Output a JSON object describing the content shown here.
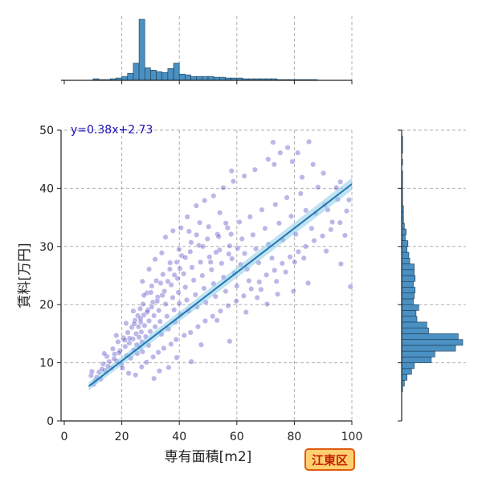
{
  "chart_data": {
    "type": "scatter",
    "title": "",
    "xlabel": "専有面積[m2]",
    "ylabel": "賃料[万円]",
    "xlim": [
      0,
      100
    ],
    "ylim": [
      0,
      50
    ],
    "x_ticks": [
      "0",
      "20",
      "40",
      "60",
      "80",
      "100"
    ],
    "y_ticks": [
      "0",
      "10",
      "20",
      "30",
      "40",
      "50"
    ],
    "grid": true,
    "regression": {
      "label": "y=0.38x+2.73",
      "slope": 0.38,
      "intercept": 2.73,
      "x_range": [
        8.5,
        100
      ]
    },
    "area_badge": "江東区",
    "scatter_color": "#2a1fb8",
    "regression_color": "#1f77b4",
    "histogram_color": "#4a90c2",
    "x_histogram": {
      "bin_width": 2,
      "bins": [
        {
          "x0": 10,
          "count": 2
        },
        {
          "x0": 12,
          "count": 1
        },
        {
          "x0": 14,
          "count": 1
        },
        {
          "x0": 16,
          "count": 2
        },
        {
          "x0": 18,
          "count": 3
        },
        {
          "x0": 20,
          "count": 5
        },
        {
          "x0": 22,
          "count": 9
        },
        {
          "x0": 24,
          "count": 22
        },
        {
          "x0": 26,
          "count": 78
        },
        {
          "x0": 28,
          "count": 16
        },
        {
          "x0": 30,
          "count": 13
        },
        {
          "x0": 32,
          "count": 11
        },
        {
          "x0": 34,
          "count": 10
        },
        {
          "x0": 36,
          "count": 15
        },
        {
          "x0": 38,
          "count": 22
        },
        {
          "x0": 40,
          "count": 8
        },
        {
          "x0": 42,
          "count": 7
        },
        {
          "x0": 44,
          "count": 5
        },
        {
          "x0": 46,
          "count": 5
        },
        {
          "x0": 48,
          "count": 5
        },
        {
          "x0": 50,
          "count": 5
        },
        {
          "x0": 52,
          "count": 4
        },
        {
          "x0": 54,
          "count": 4
        },
        {
          "x0": 56,
          "count": 3
        },
        {
          "x0": 58,
          "count": 3
        },
        {
          "x0": 60,
          "count": 3
        },
        {
          "x0": 62,
          "count": 2
        },
        {
          "x0": 64,
          "count": 2
        },
        {
          "x0": 66,
          "count": 2
        },
        {
          "x0": 68,
          "count": 2
        },
        {
          "x0": 70,
          "count": 2
        },
        {
          "x0": 72,
          "count": 2
        },
        {
          "x0": 74,
          "count": 1
        },
        {
          "x0": 76,
          "count": 1
        },
        {
          "x0": 78,
          "count": 1
        },
        {
          "x0": 80,
          "count": 1
        },
        {
          "x0": 82,
          "count": 1
        },
        {
          "x0": 84,
          "count": 1
        },
        {
          "x0": 86,
          "count": 1
        }
      ]
    },
    "y_histogram": {
      "bin_width": 1,
      "bins": [
        {
          "y0": 5,
          "count": 1
        },
        {
          "y0": 6,
          "count": 3
        },
        {
          "y0": 7,
          "count": 6
        },
        {
          "y0": 8,
          "count": 11
        },
        {
          "y0": 9,
          "count": 14
        },
        {
          "y0": 10,
          "count": 33
        },
        {
          "y0": 11,
          "count": 37
        },
        {
          "y0": 12,
          "count": 60
        },
        {
          "y0": 13,
          "count": 68
        },
        {
          "y0": 14,
          "count": 63
        },
        {
          "y0": 15,
          "count": 30
        },
        {
          "y0": 16,
          "count": 28
        },
        {
          "y0": 17,
          "count": 17
        },
        {
          "y0": 18,
          "count": 16
        },
        {
          "y0": 19,
          "count": 19
        },
        {
          "y0": 20,
          "count": 13
        },
        {
          "y0": 21,
          "count": 14
        },
        {
          "y0": 22,
          "count": 15
        },
        {
          "y0": 23,
          "count": 13
        },
        {
          "y0": 24,
          "count": 15
        },
        {
          "y0": 25,
          "count": 14
        },
        {
          "y0": 26,
          "count": 14
        },
        {
          "y0": 27,
          "count": 9
        },
        {
          "y0": 28,
          "count": 8
        },
        {
          "y0": 29,
          "count": 6
        },
        {
          "y0": 30,
          "count": 7
        },
        {
          "y0": 31,
          "count": 4
        },
        {
          "y0": 32,
          "count": 5
        },
        {
          "y0": 33,
          "count": 3
        },
        {
          "y0": 34,
          "count": 2
        },
        {
          "y0": 35,
          "count": 2
        },
        {
          "y0": 36,
          "count": 2
        },
        {
          "y0": 37,
          "count": 1
        },
        {
          "y0": 38,
          "count": 1
        },
        {
          "y0": 39,
          "count": 1
        },
        {
          "y0": 40,
          "count": 1
        },
        {
          "y0": 41,
          "count": 1
        },
        {
          "y0": 42,
          "count": 1
        },
        {
          "y0": 43,
          "count": 0
        },
        {
          "y0": 44,
          "count": 1
        },
        {
          "y0": 45,
          "count": 0
        },
        {
          "y0": 46,
          "count": 1
        },
        {
          "y0": 47,
          "count": 1
        },
        {
          "y0": 48,
          "count": 1
        },
        {
          "y0": 49,
          "count": 0
        }
      ]
    },
    "points": [
      [
        9.3,
        7.8
      ],
      [
        10.8,
        6.9
      ],
      [
        12.1,
        8.4
      ],
      [
        12.7,
        7.2
      ],
      [
        13.5,
        9.8
      ],
      [
        14.2,
        8.7
      ],
      [
        14.8,
        11.1
      ],
      [
        15.6,
        10.2
      ],
      [
        16.3,
        9.1
      ],
      [
        16.9,
        12.4
      ],
      [
        17.5,
        11.5
      ],
      [
        18.2,
        10.3
      ],
      [
        18.7,
        13.6
      ],
      [
        19.4,
        12.1
      ],
      [
        19.9,
        9.7
      ],
      [
        20.6,
        14.3
      ],
      [
        21.2,
        12.8
      ],
      [
        21.7,
        11.2
      ],
      [
        22.1,
        15.2
      ],
      [
        22.6,
        13.4
      ],
      [
        23.1,
        10.8
      ],
      [
        23.5,
        16.1
      ],
      [
        23.9,
        14.1
      ],
      [
        24.2,
        12.2
      ],
      [
        24.6,
        17.3
      ],
      [
        25.0,
        15.0
      ],
      [
        25.2,
        13.1
      ],
      [
        25.4,
        11.6
      ],
      [
        25.6,
        18.1
      ],
      [
        25.8,
        16.2
      ],
      [
        26.0,
        14.4
      ],
      [
        26.2,
        12.7
      ],
      [
        26.4,
        19.3
      ],
      [
        26.6,
        17.0
      ],
      [
        26.8,
        15.3
      ],
      [
        27.0,
        13.6
      ],
      [
        27.2,
        11.9
      ],
      [
        27.4,
        20.1
      ],
      [
        27.6,
        18.2
      ],
      [
        27.9,
        16.4
      ],
      [
        28.3,
        14.5
      ],
      [
        28.7,
        22.0
      ],
      [
        29.1,
        19.1
      ],
      [
        29.5,
        17.2
      ],
      [
        29.9,
        15.4
      ],
      [
        30.4,
        23.2
      ],
      [
        30.8,
        20.4
      ],
      [
        31.2,
        18.1
      ],
      [
        31.6,
        16.2
      ],
      [
        32.0,
        24.1
      ],
      [
        32.5,
        21.3
      ],
      [
        32.9,
        19.0
      ],
      [
        33.3,
        17.1
      ],
      [
        33.8,
        14.9
      ],
      [
        34.3,
        25.2
      ],
      [
        34.8,
        22.3
      ],
      [
        35.2,
        20.1
      ],
      [
        35.7,
        18.0
      ],
      [
        36.2,
        15.8
      ],
      [
        36.7,
        26.1
      ],
      [
        37.2,
        23.4
      ],
      [
        37.7,
        21.2
      ],
      [
        38.2,
        19.1
      ],
      [
        38.6,
        17.0
      ],
      [
        39.1,
        27.3
      ],
      [
        39.4,
        24.5
      ],
      [
        39.7,
        22.1
      ],
      [
        40.0,
        20.2
      ],
      [
        40.4,
        18.3
      ],
      [
        40.9,
        28.4
      ],
      [
        41.5,
        25.3
      ],
      [
        42.1,
        23.0
      ],
      [
        42.6,
        20.8
      ],
      [
        43.2,
        18.9
      ],
      [
        43.8,
        29.1
      ],
      [
        44.4,
        26.4
      ],
      [
        45.0,
        24.2
      ],
      [
        45.6,
        21.7
      ],
      [
        46.2,
        19.6
      ],
      [
        46.8,
        30.2
      ],
      [
        47.4,
        27.3
      ],
      [
        48.0,
        25.0
      ],
      [
        48.6,
        22.8
      ],
      [
        49.2,
        20.4
      ],
      [
        49.8,
        31.3
      ],
      [
        50.5,
        28.2
      ],
      [
        51.2,
        26.0
      ],
      [
        51.9,
        23.6
      ],
      [
        52.6,
        21.4
      ],
      [
        53.3,
        32.1
      ],
      [
        54.0,
        29.4
      ],
      [
        54.7,
        27.1
      ],
      [
        55.4,
        24.7
      ],
      [
        56.1,
        22.3
      ],
      [
        56.8,
        33.2
      ],
      [
        57.5,
        30.1
      ],
      [
        58.3,
        27.9
      ],
      [
        59.1,
        25.4
      ],
      [
        60.0,
        23.2
      ],
      [
        60.9,
        34.2
      ],
      [
        61.8,
        31.3
      ],
      [
        62.7,
        28.8
      ],
      [
        63.6,
        26.1
      ],
      [
        64.6,
        35.1
      ],
      [
        65.6,
        32.0
      ],
      [
        66.6,
        29.6
      ],
      [
        67.6,
        27.2
      ],
      [
        68.7,
        36.3
      ],
      [
        69.8,
        33.1
      ],
      [
        71.0,
        30.4
      ],
      [
        72.2,
        28.0
      ],
      [
        73.4,
        37.2
      ],
      [
        74.7,
        34.0
      ],
      [
        76.0,
        31.1
      ],
      [
        77.4,
        38.4
      ],
      [
        78.9,
        35.2
      ],
      [
        80.5,
        32.1
      ],
      [
        82.2,
        39.1
      ],
      [
        84.0,
        36.2
      ],
      [
        86.0,
        33.1
      ],
      [
        88.2,
        40.2
      ],
      [
        90.6,
        37.1
      ],
      [
        93.2,
        34.2
      ],
      [
        96.0,
        41.1
      ],
      [
        99.0,
        38.0
      ],
      [
        58.2,
        43.0
      ],
      [
        72.6,
        47.9
      ],
      [
        75.1,
        46.1
      ],
      [
        79.3,
        44.6
      ],
      [
        82.7,
        41.9
      ],
      [
        86.5,
        44.1
      ],
      [
        90.1,
        42.6
      ],
      [
        94.6,
        40.1
      ],
      [
        98.2,
        36.1
      ],
      [
        99.5,
        23.1
      ],
      [
        96.2,
        27.0
      ],
      [
        91.1,
        29.2
      ],
      [
        84.8,
        23.7
      ],
      [
        79.7,
        22.3
      ],
      [
        74.2,
        21.8
      ],
      [
        68.4,
        22.6
      ],
      [
        63.2,
        18.7
      ],
      [
        57.5,
        13.7
      ],
      [
        53.1,
        17.3
      ],
      [
        47.6,
        13.1
      ],
      [
        44.2,
        10.2
      ],
      [
        39.1,
        10.9
      ],
      [
        36.3,
        9.2
      ],
      [
        33.1,
        8.6
      ],
      [
        31.2,
        7.3
      ],
      [
        29.3,
        13.0
      ],
      [
        27.2,
        24.0
      ],
      [
        29.5,
        26.1
      ],
      [
        31.6,
        27.8
      ],
      [
        33.9,
        28.9
      ],
      [
        35.2,
        31.6
      ],
      [
        37.8,
        32.7
      ],
      [
        40.6,
        33.2
      ],
      [
        42.8,
        35.1
      ],
      [
        45.9,
        37.0
      ],
      [
        48.8,
        37.9
      ],
      [
        51.9,
        38.7
      ],
      [
        55.3,
        40.1
      ],
      [
        58.8,
        41.2
      ],
      [
        62.6,
        42.1
      ],
      [
        66.3,
        43.2
      ],
      [
        70.9,
        45.0
      ],
      [
        73.0,
        44.1
      ],
      [
        77.7,
        47.0
      ],
      [
        81.2,
        46.1
      ],
      [
        85.1,
        48.0
      ],
      [
        20.2,
        9.1
      ],
      [
        22.4,
        8.2
      ],
      [
        24.8,
        7.9
      ],
      [
        26.9,
        9.3
      ],
      [
        28.6,
        10.1
      ],
      [
        30.9,
        11.0
      ],
      [
        32.7,
        11.8
      ],
      [
        34.6,
        12.5
      ],
      [
        37.1,
        13.2
      ],
      [
        38.9,
        14.0
      ],
      [
        41.7,
        14.7
      ],
      [
        43.9,
        15.2
      ],
      [
        46.5,
        16.2
      ],
      [
        49.0,
        17.2
      ],
      [
        51.6,
        18.0
      ],
      [
        54.3,
        18.9
      ],
      [
        57.0,
        19.8
      ],
      [
        59.8,
        20.6
      ],
      [
        62.4,
        21.5
      ],
      [
        65.0,
        22.7
      ],
      [
        67.8,
        23.9
      ],
      [
        70.3,
        25.1
      ],
      [
        73.1,
        25.9
      ],
      [
        75.8,
        27.1
      ],
      [
        78.5,
        28.2
      ],
      [
        81.4,
        29.1
      ],
      [
        83.9,
        30.0
      ],
      [
        86.9,
        31.0
      ],
      [
        89.8,
        31.8
      ],
      [
        92.7,
        32.9
      ],
      [
        95.9,
        34.1
      ],
      [
        60.3,
        29.7
      ],
      [
        58.0,
        32.1
      ],
      [
        56.2,
        34.0
      ],
      [
        54.1,
        35.8
      ],
      [
        52.8,
        29.0
      ],
      [
        50.9,
        27.3
      ],
      [
        48.2,
        30.0
      ],
      [
        46.0,
        32.0
      ],
      [
        44.1,
        30.7
      ],
      [
        42.1,
        28.1
      ],
      [
        40.2,
        26.2
      ],
      [
        38.3,
        25.1
      ],
      [
        36.0,
        24.0
      ],
      [
        34.1,
        21.6
      ],
      [
        32.3,
        20.6
      ],
      [
        30.4,
        19.6
      ],
      [
        28.8,
        18.7
      ],
      [
        26.5,
        17.6
      ],
      [
        24.3,
        16.7
      ],
      [
        22.7,
        14.2
      ],
      [
        21.0,
        13.9
      ],
      [
        19.1,
        11.7
      ],
      [
        17.3,
        10.7
      ],
      [
        15.2,
        9.4
      ],
      [
        13.1,
        8.9
      ],
      [
        11.3,
        7.5
      ],
      [
        10.2,
        6.3
      ],
      [
        9.6,
        8.5
      ],
      [
        13.9,
        11.6
      ],
      [
        18.1,
        14.7
      ],
      [
        21.5,
        16.8
      ],
      [
        24.0,
        18.9
      ],
      [
        27.7,
        21.6
      ],
      [
        30.1,
        22.1
      ],
      [
        33.5,
        23.7
      ],
      [
        36.8,
        27.2
      ],
      [
        39.9,
        29.5
      ],
      [
        43.4,
        32.6
      ],
      [
        47.1,
        34.1
      ],
      [
        50.2,
        33.4
      ],
      [
        53.7,
        31.7
      ],
      [
        57.2,
        28.7
      ],
      [
        61.3,
        26.9
      ],
      [
        64.2,
        24.1
      ],
      [
        67.1,
        21.2
      ],
      [
        70.5,
        20.1
      ],
      [
        73.8,
        24.0
      ],
      [
        77.0,
        25.6
      ],
      [
        80.1,
        27.3
      ],
      [
        83.3,
        28.0
      ],
      [
        87.4,
        35.7
      ],
      [
        91.6,
        36.3
      ],
      [
        95.1,
        38.1
      ],
      [
        97.6,
        31.9
      ]
    ]
  }
}
